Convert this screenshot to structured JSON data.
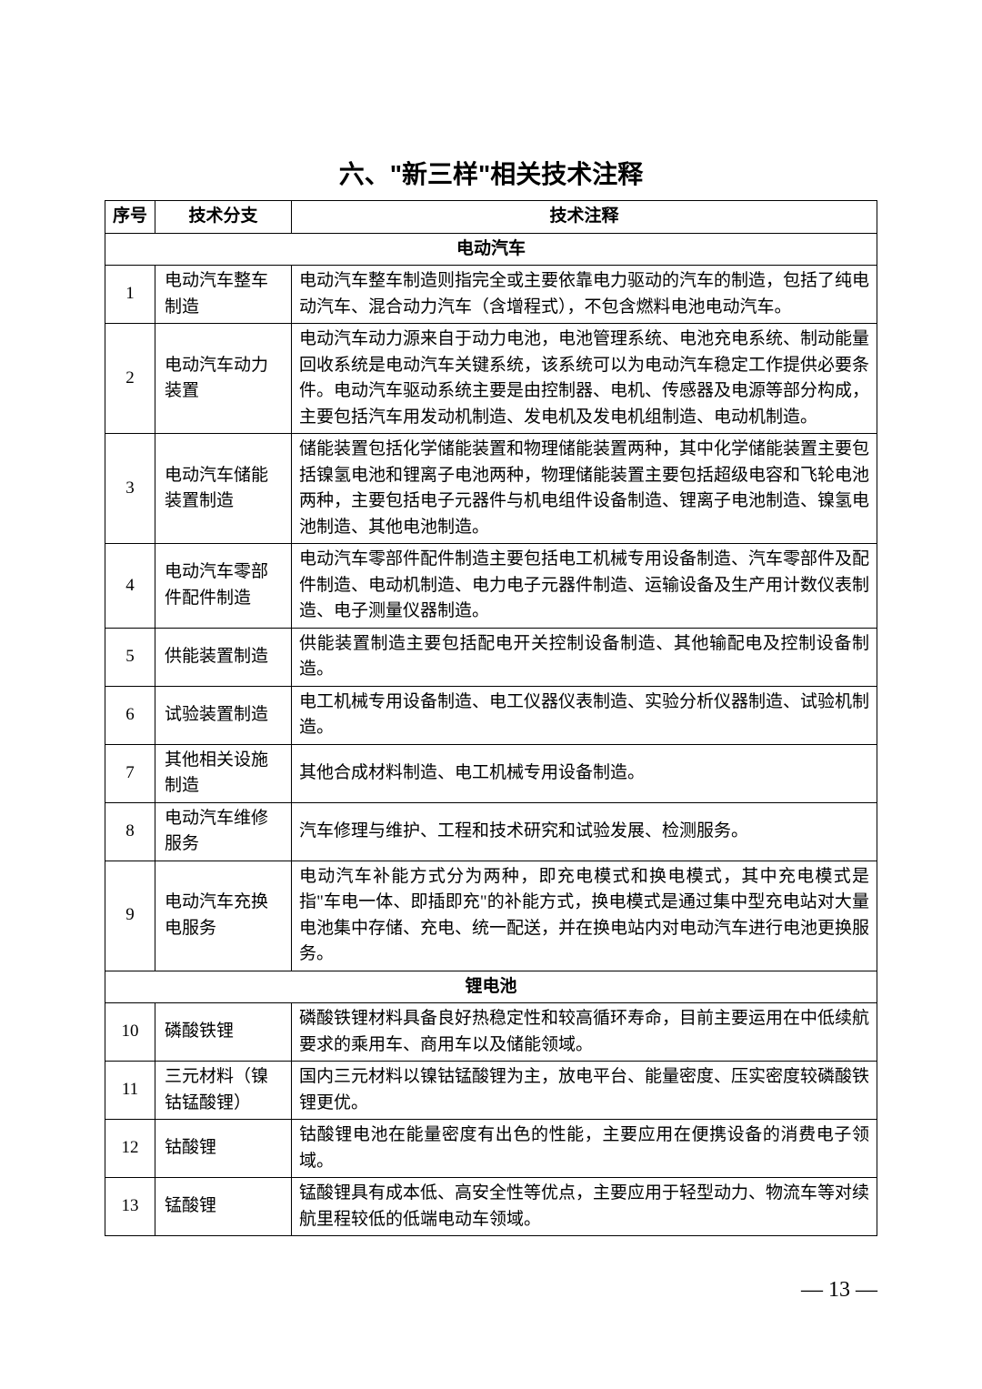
{
  "title": "六、\"新三样\"相关技术注释",
  "columns": {
    "num": "序号",
    "branch": "技术分支",
    "note": "技术注释"
  },
  "sections": [
    {
      "name": "电动汽车",
      "rows": [
        {
          "num": "1",
          "branch": "电动汽车整车制造",
          "note": "电动汽车整车制造则指完全或主要依靠电力驱动的汽车的制造，包括了纯电动汽车、混合动力汽车（含增程式），不包含燃料电池电动汽车。"
        },
        {
          "num": "2",
          "branch": "电动汽车动力装置",
          "note": "电动汽车动力源来自于动力电池，电池管理系统、电池充电系统、制动能量回收系统是电动汽车关键系统，该系统可以为电动汽车稳定工作提供必要条件。电动汽车驱动系统主要是由控制器、电机、传感器及电源等部分构成，主要包括汽车用发动机制造、发电机及发电机组制造、电动机制造。"
        },
        {
          "num": "3",
          "branch": "电动汽车储能装置制造",
          "note": "储能装置包括化学储能装置和物理储能装置两种，其中化学储能装置主要包括镍氢电池和锂离子电池两种，物理储能装置主要包括超级电容和飞轮电池两种，主要包括电子元器件与机电组件设备制造、锂离子电池制造、镍氢电池制造、其他电池制造。"
        },
        {
          "num": "4",
          "branch": "电动汽车零部件配件制造",
          "note": "电动汽车零部件配件制造主要包括电工机械专用设备制造、汽车零部件及配件制造、电动机制造、电力电子元器件制造、运输设备及生产用计数仪表制造、电子测量仪器制造。"
        },
        {
          "num": "5",
          "branch": "供能装置制造",
          "note": "供能装置制造主要包括配电开关控制设备制造、其他输配电及控制设备制造。"
        },
        {
          "num": "6",
          "branch": "试验装置制造",
          "note": "电工机械专用设备制造、电工仪器仪表制造、实验分析仪器制造、试验机制造。"
        },
        {
          "num": "7",
          "branch": "其他相关设施制造",
          "note": "其他合成材料制造、电工机械专用设备制造。"
        },
        {
          "num": "8",
          "branch": "电动汽车维修服务",
          "note": "汽车修理与维护、工程和技术研究和试验发展、检测服务。"
        },
        {
          "num": "9",
          "branch": "电动汽车充换电服务",
          "note": "电动汽车补能方式分为两种，即充电模式和换电模式，其中充电模式是指\"车电一体、即插即充\"的补能方式，换电模式是通过集中型充电站对大量电池集中存储、充电、统一配送，并在换电站内对电动汽车进行电池更换服务。"
        }
      ]
    },
    {
      "name": "锂电池",
      "rows": [
        {
          "num": "10",
          "branch": "磷酸铁锂",
          "note": "磷酸铁锂材料具备良好热稳定性和较高循环寿命，目前主要运用在中低续航要求的乘用车、商用车以及储能领域。"
        },
        {
          "num": "11",
          "branch": "三元材料（镍钴锰酸锂）",
          "note": "国内三元材料以镍钴锰酸锂为主，放电平台、能量密度、压实密度较磷酸铁锂更优。"
        },
        {
          "num": "12",
          "branch": "钴酸锂",
          "note": "钴酸锂电池在能量密度有出色的性能，主要应用在便携设备的消费电子领域。"
        },
        {
          "num": "13",
          "branch": "锰酸锂",
          "note": "锰酸锂具有成本低、高安全性等优点，主要应用于轻型动力、物流车等对续航里程较低的低端电动车领域。"
        }
      ]
    }
  ],
  "page_number": "— 13 —"
}
